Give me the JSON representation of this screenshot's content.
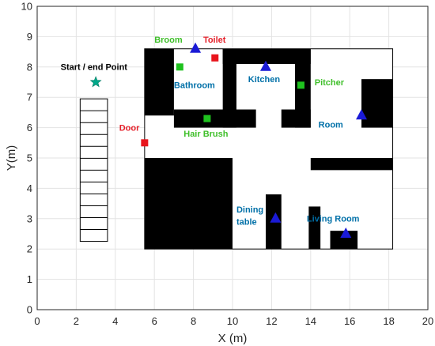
{
  "chart_data": {
    "type": "scatter",
    "xlabel": "X (m)",
    "ylabel": "Y(m)",
    "xlim": [
      0,
      20
    ],
    "ylim": [
      0,
      10
    ],
    "xticks": [
      "0",
      "2",
      "4",
      "6",
      "8",
      "10",
      "12",
      "14",
      "16",
      "18",
      "20"
    ],
    "yticks": [
      "0",
      "1",
      "2",
      "3",
      "4",
      "5",
      "6",
      "7",
      "8",
      "9",
      "10"
    ],
    "grid": true,
    "colors": {
      "grid": "#e3e3e3",
      "axis": "#262626",
      "wall": "#000000",
      "floor": "#ffffff",
      "red": "#e8141c",
      "green": "#1fc21f",
      "blue": "#1a1ad6",
      "teal": "#00a88a",
      "label_blue": "#0070a8",
      "label_green": "#3fbf2a",
      "label_red": "#e5202a",
      "label_black": "#000000"
    },
    "floorplan": {
      "x": [
        5.5,
        18.2
      ],
      "y": [
        2,
        8.6
      ]
    },
    "walls": [
      {
        "x": [
          5.5,
          7.0
        ],
        "y": [
          6.4,
          8.6
        ]
      },
      {
        "x": [
          5.5,
          10.0
        ],
        "y": [
          2.0,
          5.0
        ]
      },
      {
        "x": [
          7.0,
          11.2
        ],
        "y": [
          6.0,
          6.6
        ]
      },
      {
        "x": [
          9.5,
          14.0
        ],
        "y": [
          8.1,
          8.6
        ]
      },
      {
        "x": [
          9.5,
          10.2
        ],
        "y": [
          6.0,
          8.6
        ]
      },
      {
        "x": [
          13.2,
          14.0
        ],
        "y": [
          6.0,
          8.6
        ]
      },
      {
        "x": [
          12.5,
          14.0
        ],
        "y": [
          6.0,
          6.6
        ]
      },
      {
        "x": [
          16.6,
          18.2
        ],
        "y": [
          6.0,
          7.6
        ]
      },
      {
        "x": [
          14.0,
          18.2
        ],
        "y": [
          4.6,
          5.0
        ]
      },
      {
        "x": [
          11.7,
          12.5
        ],
        "y": [
          2.0,
          3.8
        ]
      },
      {
        "x": [
          13.9,
          14.5
        ],
        "y": [
          2.0,
          3.4
        ]
      },
      {
        "x": [
          15.0,
          16.4
        ],
        "y": [
          2.0,
          2.6
        ]
      }
    ],
    "staircase": {
      "x": [
        2.2,
        3.6
      ],
      "y": [
        2.25,
        6.95
      ],
      "steps": 12
    },
    "series": [
      {
        "marker": "square",
        "color": "red",
        "points": [
          [
            9.1,
            8.3
          ],
          [
            5.5,
            5.5
          ]
        ]
      },
      {
        "marker": "square",
        "color": "green",
        "points": [
          [
            7.3,
            8.0
          ],
          [
            8.7,
            6.3
          ],
          [
            13.5,
            7.4
          ]
        ]
      },
      {
        "marker": "triangle",
        "color": "blue",
        "points": [
          [
            8.1,
            8.6
          ],
          [
            11.7,
            8.0
          ],
          [
            16.6,
            6.4
          ],
          [
            12.2,
            3.0
          ],
          [
            15.8,
            2.5
          ]
        ]
      },
      {
        "marker": "star",
        "color": "teal",
        "points": [
          [
            3.0,
            7.5
          ]
        ]
      }
    ],
    "annotations": [
      {
        "text": "Broom",
        "x": 6.0,
        "y": 8.8,
        "color": "label_green"
      },
      {
        "text": "Toilet",
        "x": 8.5,
        "y": 8.8,
        "color": "label_red"
      },
      {
        "text": "Start / end Point",
        "x": 1.2,
        "y": 7.9,
        "color": "label_black"
      },
      {
        "text": "Bathroom",
        "x": 7.0,
        "y": 7.3,
        "color": "label_blue"
      },
      {
        "text": "Kitchen",
        "x": 10.8,
        "y": 7.5,
        "color": "label_blue"
      },
      {
        "text": "Pitcher",
        "x": 14.2,
        "y": 7.4,
        "color": "label_green"
      },
      {
        "text": "Room",
        "x": 14.4,
        "y": 6.0,
        "color": "label_blue"
      },
      {
        "text": "Door",
        "x": 4.2,
        "y": 5.9,
        "color": "label_red"
      },
      {
        "text": "Hair Brush",
        "x": 7.5,
        "y": 5.7,
        "color": "label_green"
      },
      {
        "text": "Dining",
        "x": 10.2,
        "y": 3.2,
        "color": "label_blue"
      },
      {
        "text": "table",
        "x": 10.2,
        "y": 2.8,
        "color": "label_blue"
      },
      {
        "text": "Living Room",
        "x": 13.8,
        "y": 2.9,
        "color": "label_blue"
      }
    ]
  }
}
